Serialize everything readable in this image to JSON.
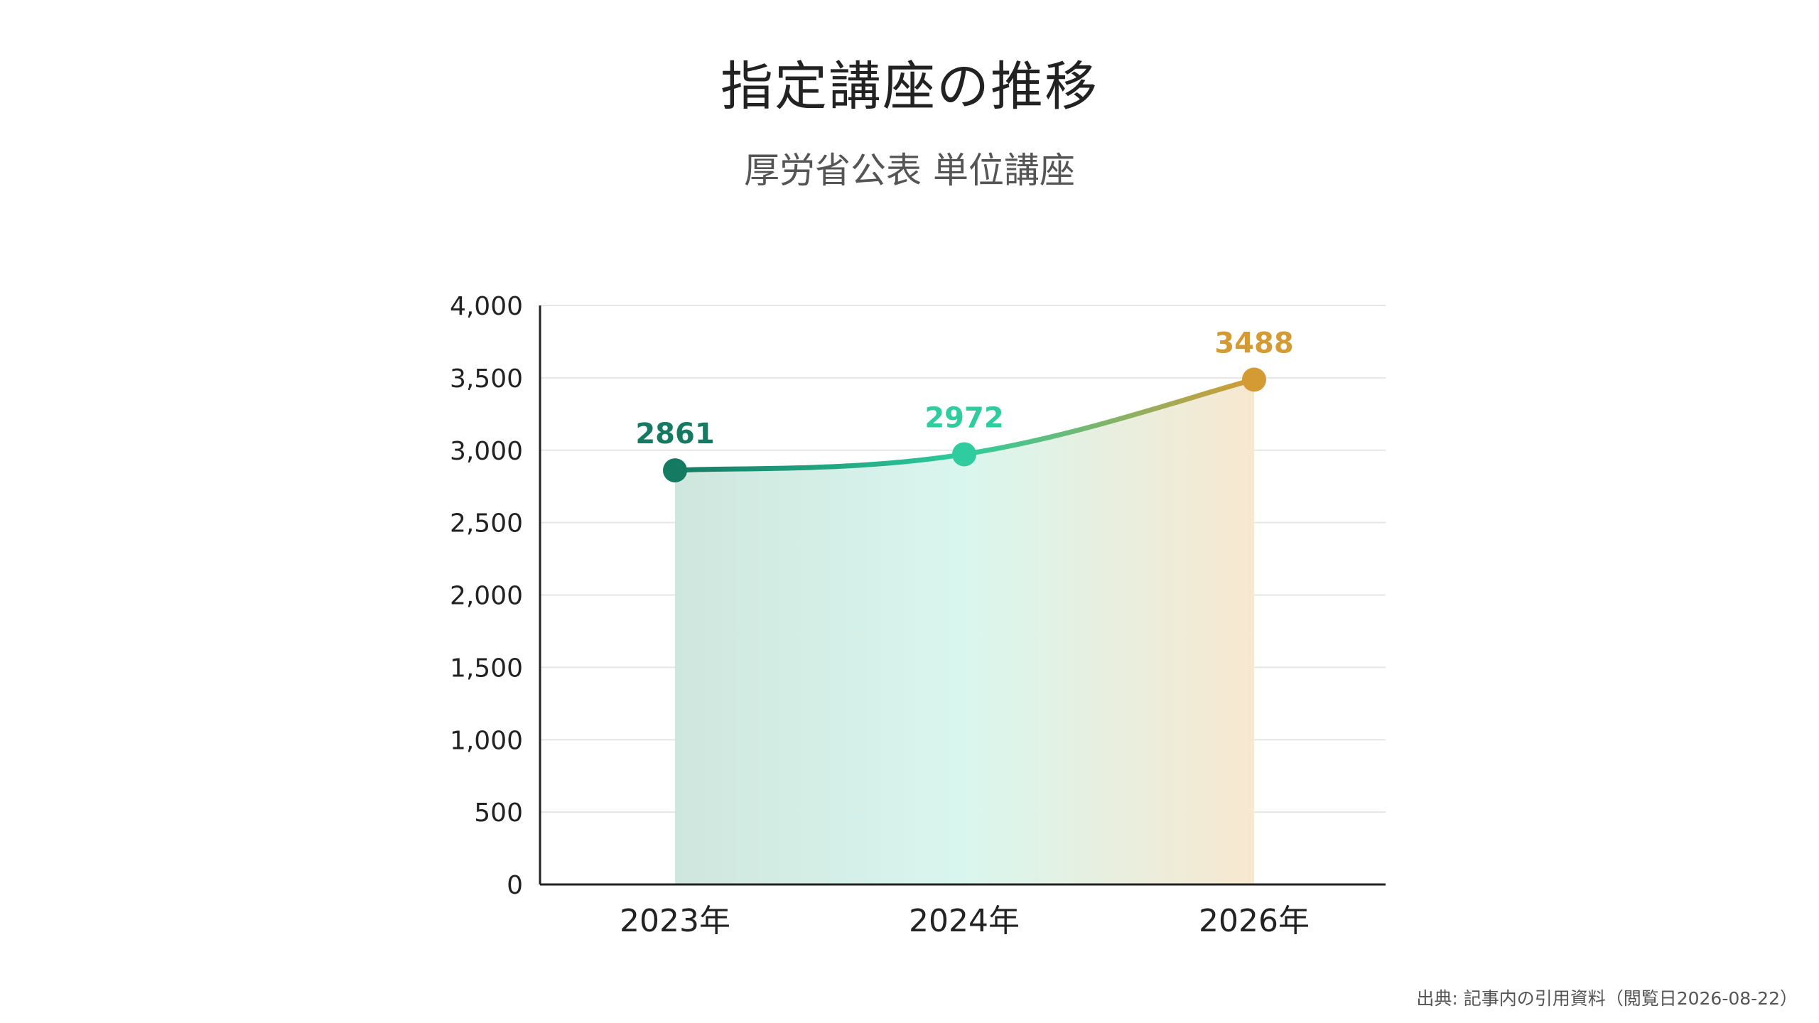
{
  "chart_data": {
    "type": "area",
    "title": "指定講座の推移",
    "subtitle": "厚労省公表 単位講座",
    "categories": [
      "2023年",
      "2024年",
      "2026年"
    ],
    "series": [
      {
        "values": [
          2861,
          2972,
          3488
        ]
      }
    ],
    "data_labels": [
      "2861",
      "2972",
      "3488"
    ],
    "point_colors": [
      "#157a62",
      "#2ecc9e",
      "#d49b34"
    ],
    "fill_colors": [
      "#cfe6de",
      "#d9f6ee",
      "#f7e8d0"
    ],
    "ylim": [
      0,
      4000
    ],
    "yticks": [
      0,
      500,
      1000,
      1500,
      2000,
      2500,
      3000,
      3500,
      4000
    ],
    "ytick_labels": [
      "0",
      "500",
      "1,000",
      "1,500",
      "2,000",
      "2,500",
      "3,000",
      "3,500",
      "4,000"
    ],
    "grid": true,
    "xlabel": "",
    "ylabel": ""
  },
  "source_note": "出典: 記事内の引用資料（閲覧日2026-08-22）"
}
